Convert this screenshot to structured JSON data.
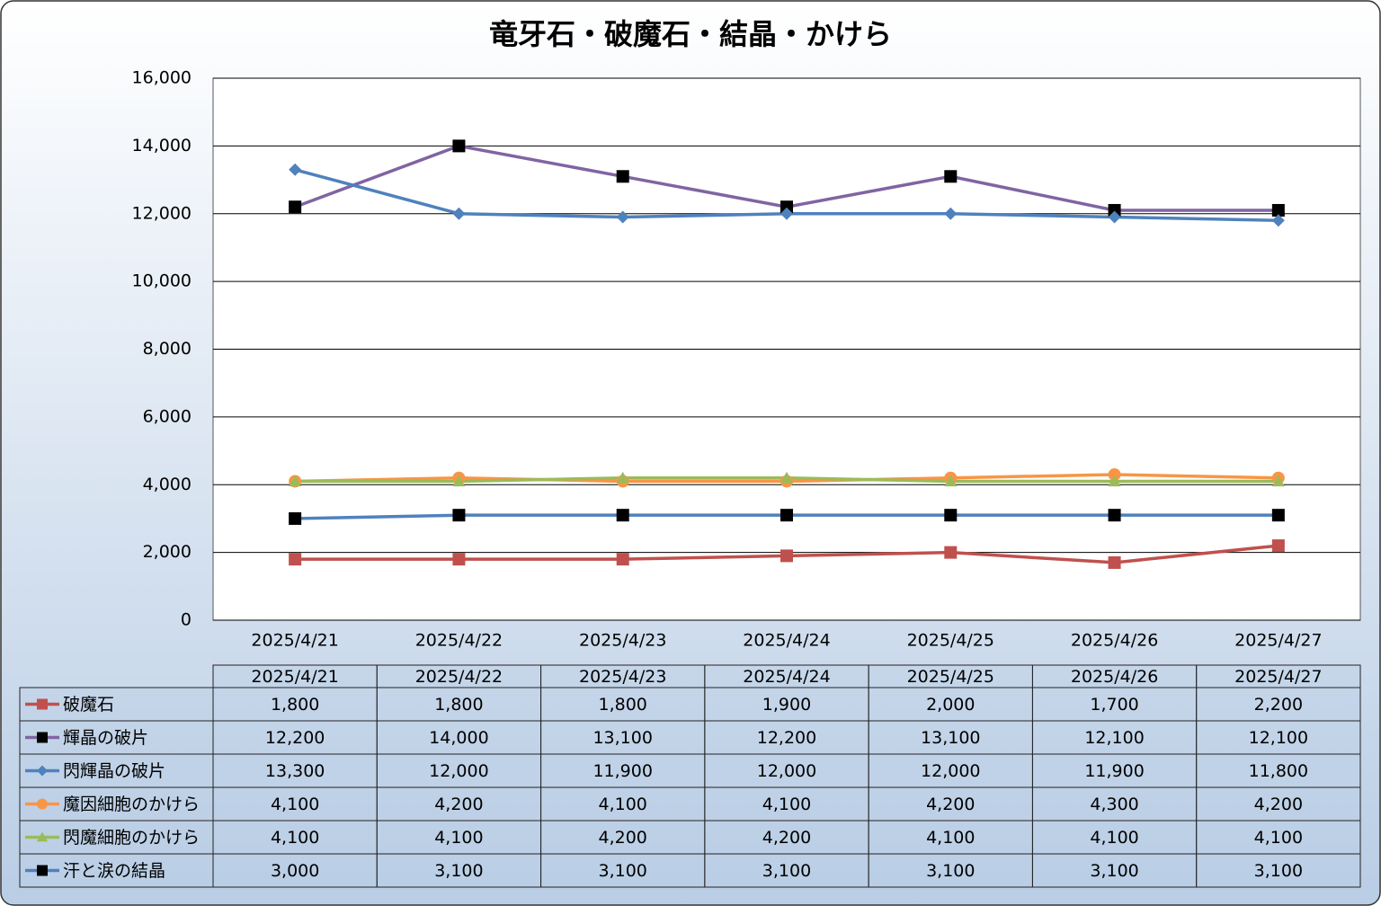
{
  "chart_data": {
    "type": "line",
    "title": "竜牙石・破魔石・結晶・かけら",
    "categories": [
      "2025/4/21",
      "2025/4/22",
      "2025/4/23",
      "2025/4/24",
      "2025/4/25",
      "2025/4/26",
      "2025/4/27"
    ],
    "ylim": [
      0,
      16000
    ],
    "yticks": [
      0,
      {
        "value": 2000,
        "label": "2,000"
      },
      {
        "value": 4000,
        "label": "4,000"
      },
      {
        "value": 6000,
        "label": "6,000"
      },
      {
        "value": 8000,
        "label": "8,000"
      },
      {
        "value": 10000,
        "label": "10,000"
      },
      {
        "value": 12000,
        "label": "12,000"
      },
      {
        "value": 14000,
        "label": "14,000"
      },
      {
        "value": 16000,
        "label": "16,000"
      }
    ],
    "grid": true,
    "series": [
      {
        "name": "破魔石",
        "color": "#c0504d",
        "marker": "square",
        "marker_color": "#c0504d",
        "values": [
          1800,
          1800,
          1800,
          1900,
          2000,
          1700,
          2200
        ],
        "value_labels": [
          "1,800",
          "1,800",
          "1,800",
          "1,900",
          "2,000",
          "1,700",
          "2,200"
        ]
      },
      {
        "name": "輝晶の破片",
        "color": "#8064a2",
        "marker": "square",
        "marker_color": "#000000",
        "values": [
          12200,
          14000,
          13100,
          12200,
          13100,
          12100,
          12100
        ],
        "value_labels": [
          "12,200",
          "14,000",
          "13,100",
          "12,200",
          "13,100",
          "12,100",
          "12,100"
        ]
      },
      {
        "name": "閃輝晶の破片",
        "color": "#4f81bd",
        "marker": "diamond",
        "marker_color": "#4f81bd",
        "values": [
          13300,
          12000,
          11900,
          12000,
          12000,
          11900,
          11800
        ],
        "value_labels": [
          "13,300",
          "12,000",
          "11,900",
          "12,000",
          "12,000",
          "11,900",
          "11,800"
        ]
      },
      {
        "name": "魔因細胞のかけら",
        "color": "#f79646",
        "marker": "circle",
        "marker_color": "#f79646",
        "values": [
          4100,
          4200,
          4100,
          4100,
          4200,
          4300,
          4200
        ],
        "value_labels": [
          "4,100",
          "4,200",
          "4,100",
          "4,100",
          "4,200",
          "4,300",
          "4,200"
        ]
      },
      {
        "name": "閃魔細胞のかけら",
        "color": "#9bbb59",
        "marker": "triangle",
        "marker_color": "#9bbb59",
        "values": [
          4100,
          4100,
          4200,
          4200,
          4100,
          4100,
          4100
        ],
        "value_labels": [
          "4,100",
          "4,100",
          "4,200",
          "4,200",
          "4,100",
          "4,100",
          "4,100"
        ]
      },
      {
        "name": "汗と涙の結晶",
        "color": "#4f81bd",
        "marker": "square",
        "marker_color": "#000000",
        "values": [
          3000,
          3100,
          3100,
          3100,
          3100,
          3100,
          3100
        ],
        "value_labels": [
          "3,000",
          "3,100",
          "3,100",
          "3,100",
          "3,100",
          "3,100",
          "3,100"
        ]
      }
    ]
  }
}
